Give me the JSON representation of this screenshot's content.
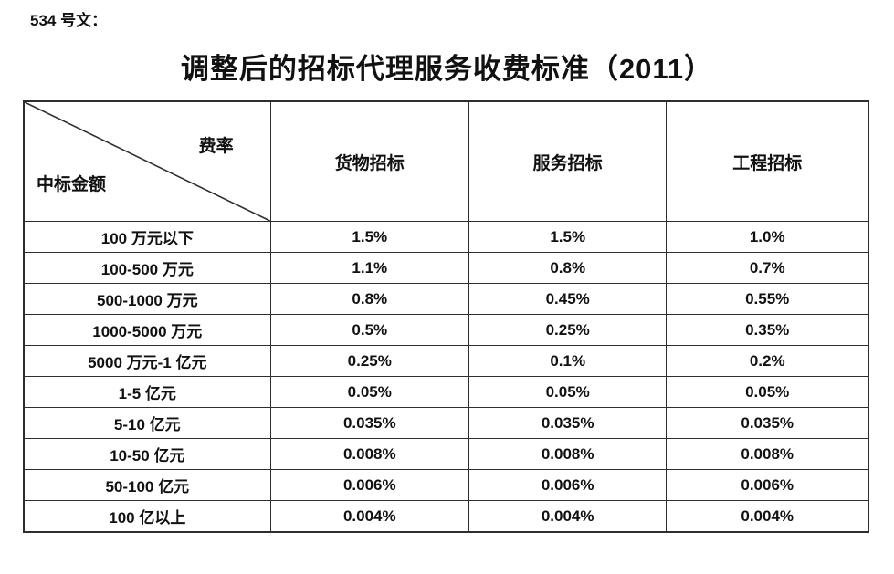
{
  "page": {
    "doc_label": "534 号文：",
    "title": "调整后的招标代理服务收费标准（2011）"
  },
  "table": {
    "corner": {
      "top_right_label": "费率",
      "bottom_left_label": "中标金额"
    },
    "columns": [
      "货物招标",
      "服务招标",
      "工程招标"
    ],
    "rows": [
      {
        "amount": "100 万元以下",
        "values": [
          "1.5%",
          "1.5%",
          "1.0%"
        ]
      },
      {
        "amount": "100-500 万元",
        "values": [
          "1.1%",
          "0.8%",
          "0.7%"
        ]
      },
      {
        "amount": "500-1000 万元",
        "values": [
          "0.8%",
          "0.45%",
          "0.55%"
        ]
      },
      {
        "amount": "1000-5000 万元",
        "values": [
          "0.5%",
          "0.25%",
          "0.35%"
        ]
      },
      {
        "amount": "5000 万元-1 亿元",
        "values": [
          "0.25%",
          "0.1%",
          "0.2%"
        ]
      },
      {
        "amount": "1-5 亿元",
        "values": [
          "0.05%",
          "0.05%",
          "0.05%"
        ]
      },
      {
        "amount": "5-10 亿元",
        "values": [
          "0.035%",
          "0.035%",
          "0.035%"
        ]
      },
      {
        "amount": "10-50 亿元",
        "values": [
          "0.008%",
          "0.008%",
          "0.008%"
        ]
      },
      {
        "amount": "50-100 亿元",
        "values": [
          "0.006%",
          "0.006%",
          "0.006%"
        ]
      },
      {
        "amount": "100 亿以上",
        "values": [
          "0.004%",
          "0.004%",
          "0.004%"
        ]
      }
    ]
  },
  "colors": {
    "border": "#2e2e2e",
    "text": "#111111",
    "background": "#ffffff"
  }
}
